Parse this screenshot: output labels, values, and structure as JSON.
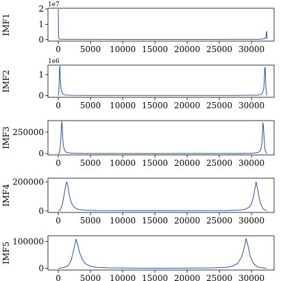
{
  "chart_data": [
    {
      "type": "line",
      "ylabel": "IMF1",
      "offset_label": "1e7",
      "xlim": [
        -1600,
        33500
      ],
      "ylim": [
        -0.1,
        2.05
      ],
      "x_ticks": [
        0,
        5000,
        10000,
        15000,
        20000,
        25000,
        30000
      ],
      "x_tick_labels": [
        "0",
        "5000",
        "10000",
        "15000",
        "20000",
        "25000",
        "30000"
      ],
      "y_ticks": [
        0,
        1,
        2
      ],
      "y_tick_labels": [
        "0",
        "1",
        "2"
      ],
      "color": "#1f4fb4",
      "series": [
        {
          "x": [
            0,
            20,
            50,
            100,
            300,
            1000,
            5000,
            10000,
            16000,
            22000,
            27000,
            31000,
            31800,
            32200,
            32280,
            32330,
            32360,
            32400
          ],
          "y": [
            2.0,
            1.2,
            0.2,
            0.06,
            0.03,
            0.02,
            0.015,
            0.01,
            0.01,
            0.01,
            0.015,
            0.02,
            0.04,
            0.1,
            0.3,
            0.5,
            0.55,
            0.05
          ]
        }
      ]
    },
    {
      "type": "line",
      "ylabel": "IMF2",
      "offset_label": "1e6",
      "xlim": [
        -1600,
        33500
      ],
      "ylim": [
        -0.08,
        1.45
      ],
      "x_ticks": [
        0,
        5000,
        10000,
        15000,
        20000,
        25000,
        30000
      ],
      "x_tick_labels": [
        "0",
        "5000",
        "10000",
        "15000",
        "20000",
        "25000",
        "30000"
      ],
      "y_ticks": [
        0,
        1
      ],
      "y_tick_labels": [
        "0",
        "1"
      ],
      "color": "#1f4fb4",
      "series": [
        {
          "x": [
            0,
            100,
            200,
            250,
            300,
            380,
            460,
            600,
            800,
            1100,
            2000,
            5000,
            16000,
            28000,
            31000,
            31400,
            31700,
            31880,
            31980,
            32050,
            32120,
            32220,
            32360
          ],
          "y": [
            0,
            0.3,
            1.3,
            1.4,
            0.9,
            0.5,
            0.25,
            0.12,
            0.06,
            0.03,
            0.015,
            0.01,
            0.01,
            0.01,
            0.02,
            0.05,
            0.12,
            0.3,
            0.7,
            1.35,
            1.3,
            0.4,
            0.0
          ]
        }
      ]
    },
    {
      "type": "line",
      "ylabel": "IMF3",
      "xlim": [
        -1600,
        33500
      ],
      "ylim": [
        -15000,
        385000
      ],
      "x_ticks": [
        0,
        5000,
        10000,
        15000,
        20000,
        25000,
        30000
      ],
      "x_tick_labels": [
        "0",
        "5000",
        "10000",
        "15000",
        "20000",
        "25000",
        "30000"
      ],
      "y_ticks": [
        0,
        250000
      ],
      "y_tick_labels": [
        "0",
        "250000"
      ],
      "color": "#1f4fb4",
      "series": [
        {
          "x": [
            0,
            150,
            300,
            420,
            500,
            560,
            620,
            680,
            760,
            880,
            1050,
            1300,
            1700,
            2500,
            5000,
            16000,
            28000,
            29800,
            30600,
            31050,
            31300,
            31480,
            31600,
            31680,
            31760,
            31840,
            31950,
            32100,
            32360
          ],
          "y": [
            0,
            5000,
            60000,
            210000,
            330000,
            375000,
            300000,
            200000,
            120000,
            60000,
            30000,
            15000,
            8000,
            4000,
            2000,
            1500,
            2000,
            4000,
            8000,
            15000,
            30000,
            60000,
            120000,
            220000,
            360000,
            320000,
            180000,
            40000,
            0
          ]
        }
      ]
    },
    {
      "type": "line",
      "ylabel": "IMF4",
      "xlim": [
        -1600,
        33500
      ],
      "ylim": [
        -10000,
        225000
      ],
      "x_ticks": [
        0,
        5000,
        10000,
        15000,
        20000,
        25000,
        30000
      ],
      "x_tick_labels": [
        "0",
        "5000",
        "10000",
        "15000",
        "20000",
        "25000",
        "30000"
      ],
      "y_ticks": [
        0,
        200000
      ],
      "y_tick_labels": [
        "0",
        "200000"
      ],
      "color": "#1f4fb4",
      "series": [
        {
          "x": [
            0,
            300,
            600,
            900,
            1100,
            1300,
            1450,
            1600,
            1800,
            2100,
            2500,
            3000,
            4000,
            6000,
            16000,
            26000,
            28000,
            29000,
            29600,
            30000,
            30300,
            30550,
            30700,
            30850,
            31100,
            31400,
            31800,
            32360
          ],
          "y": [
            0,
            8000,
            40000,
            110000,
            165000,
            200000,
            180000,
            140000,
            90000,
            50000,
            25000,
            12000,
            6000,
            3000,
            2000,
            3000,
            6000,
            12000,
            25000,
            50000,
            100000,
            160000,
            200000,
            170000,
            110000,
            50000,
            15000,
            0
          ]
        }
      ]
    },
    {
      "type": "line",
      "ylabel": "IMF5",
      "xlim": [
        -1600,
        33500
      ],
      "ylim": [
        -6000,
        122000
      ],
      "x_ticks": [
        0,
        5000,
        10000,
        15000,
        20000,
        25000,
        30000
      ],
      "x_tick_labels": [
        "0",
        "5000",
        "10000",
        "15000",
        "20000",
        "25000",
        "30000"
      ],
      "y_ticks": [
        0,
        100000
      ],
      "y_tick_labels": [
        "0",
        "100000"
      ],
      "color": "#1f4fb4",
      "series": [
        {
          "x": [
            0,
            800,
            1500,
            2000,
            2400,
            2750,
            3000,
            3300,
            3700,
            4200,
            5000,
            6000,
            8000,
            12000,
            16000,
            20000,
            24000,
            26000,
            27000,
            27800,
            28400,
            28850,
            29150,
            29450,
            29800,
            30300,
            31000,
            32360
          ],
          "y": [
            0,
            3000,
            10000,
            30000,
            70000,
            110000,
            90000,
            60000,
            35000,
            18000,
            8000,
            4000,
            2000,
            1000,
            800,
            1000,
            2000,
            4000,
            8000,
            18000,
            40000,
            75000,
            112000,
            85000,
            45000,
            18000,
            5000,
            0
          ]
        }
      ]
    }
  ]
}
